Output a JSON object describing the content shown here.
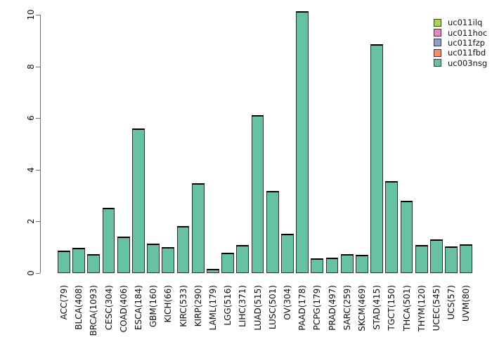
{
  "chart_data": {
    "type": "bar",
    "title": "",
    "xlabel": "",
    "ylabel": "",
    "grid": false,
    "ylim": [
      0,
      10
    ],
    "yticks": [
      0,
      2,
      4,
      6,
      8,
      10
    ],
    "bar_color": "#66C2A5",
    "bar_border_color": "#2e2e2e",
    "axis_color": "#6e6e6e",
    "categories": [
      "ACC(79)",
      "BLCA(408)",
      "BRCA(1093)",
      "CESC(304)",
      "COAD(406)",
      "ESCA(184)",
      "GBM(160)",
      "KICH(66)",
      "KIRC(533)",
      "KIRP(290)",
      "LAML(179)",
      "LGG(516)",
      "LIHC(371)",
      "LUAD(515)",
      "LUSC(501)",
      "OV(304)",
      "PAAD(178)",
      "PCPG(179)",
      "PRAD(497)",
      "SARC(259)",
      "SKCM(469)",
      "STAD(415)",
      "TGCT(150)",
      "THCA(501)",
      "THYM(120)",
      "UCEC(545)",
      "UCS(57)",
      "UVM(80)"
    ],
    "values": [
      0.87,
      0.98,
      0.74,
      2.53,
      1.4,
      5.61,
      1.13,
      1.0,
      1.83,
      3.49,
      0.17,
      0.8,
      1.1,
      6.12,
      3.17,
      1.53,
      10.13,
      0.57,
      0.61,
      0.74,
      0.7,
      8.85,
      3.57,
      2.81,
      1.08,
      1.3,
      1.04,
      1.11
    ],
    "series_name": "uc003nsg",
    "legend": {
      "position": "top-right",
      "entries": [
        {
          "label": "uc011ilq",
          "color": "#A6D854"
        },
        {
          "label": "uc011hoc",
          "color": "#E78AC3"
        },
        {
          "label": "uc011fzp",
          "color": "#8DA0CB"
        },
        {
          "label": "uc011fbd",
          "color": "#FC8D62"
        },
        {
          "label": "uc003nsg",
          "color": "#66C2A5"
        }
      ]
    }
  }
}
